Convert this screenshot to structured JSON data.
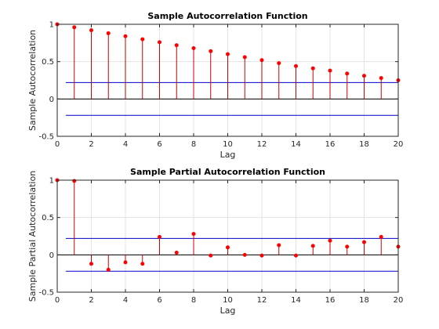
{
  "chart_data": [
    {
      "type": "stem",
      "title": "Sample Autocorrelation Function",
      "xlabel": "Lag",
      "ylabel": "Sample Autocorrelation",
      "xlim": [
        0,
        20
      ],
      "ylim": [
        -0.5,
        1
      ],
      "xticks": [
        0,
        2,
        4,
        6,
        8,
        10,
        12,
        14,
        16,
        18,
        20
      ],
      "yticks": [
        -0.5,
        0,
        0.5,
        1
      ],
      "ytick_labels": [
        "-0.5",
        "0",
        "0.5",
        "1"
      ],
      "grid": true,
      "x": [
        0,
        1,
        2,
        3,
        4,
        5,
        6,
        7,
        8,
        9,
        10,
        11,
        12,
        13,
        14,
        15,
        16,
        17,
        18,
        19,
        20
      ],
      "values": [
        1.0,
        0.96,
        0.92,
        0.88,
        0.84,
        0.8,
        0.76,
        0.72,
        0.68,
        0.64,
        0.6,
        0.56,
        0.52,
        0.48,
        0.44,
        0.41,
        0.38,
        0.34,
        0.31,
        0.28,
        0.25
      ],
      "confidence_bounds": [
        0.22,
        -0.22
      ],
      "colors": {
        "stem": "#cc0000",
        "marker": "#ff0000",
        "bounds": "#0000cc",
        "zero": "#000000"
      }
    },
    {
      "type": "stem",
      "title": "Sample Partial Autocorrelation Function",
      "xlabel": "Lag",
      "ylabel": "Sample Partial Autocorrelation",
      "xlim": [
        0,
        20
      ],
      "ylim": [
        -0.5,
        1
      ],
      "xticks": [
        0,
        2,
        4,
        6,
        8,
        10,
        12,
        14,
        16,
        18,
        20
      ],
      "yticks": [
        -0.5,
        0,
        0.5,
        1
      ],
      "ytick_labels": [
        "-0.5",
        "0",
        "0.5",
        "1"
      ],
      "grid": true,
      "x": [
        0,
        1,
        2,
        3,
        4,
        5,
        6,
        7,
        8,
        9,
        10,
        11,
        12,
        13,
        14,
        15,
        16,
        17,
        18,
        19,
        20
      ],
      "values": [
        1.0,
        0.99,
        -0.12,
        -0.2,
        -0.1,
        -0.12,
        0.24,
        0.03,
        0.28,
        -0.01,
        0.1,
        0.0,
        -0.01,
        0.13,
        -0.01,
        0.12,
        0.19,
        0.11,
        0.17,
        0.24,
        0.11
      ],
      "confidence_bounds": [
        0.22,
        -0.22
      ],
      "colors": {
        "stem": "#cc0000",
        "marker": "#ff0000",
        "bounds": "#0000cc",
        "zero": "#000000"
      }
    }
  ]
}
